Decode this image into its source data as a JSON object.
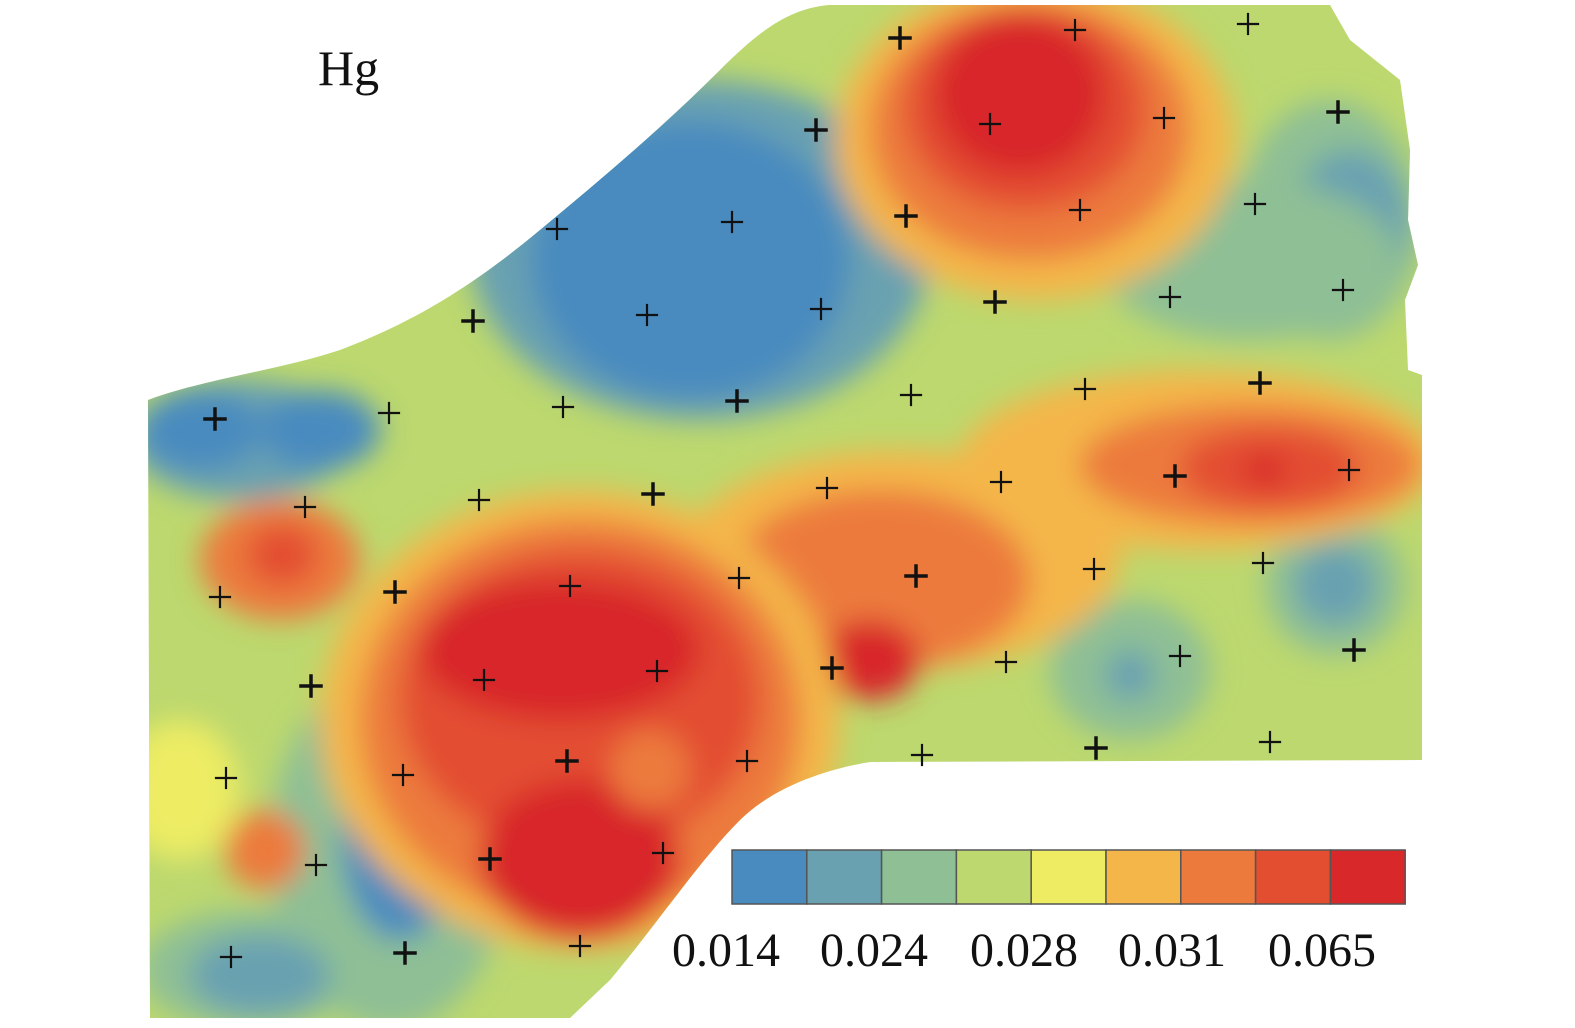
{
  "map": {
    "element_label": "Hg"
  },
  "legend": {
    "swatches": [
      {
        "color": "#4a8bbf"
      },
      {
        "color": "#69a1b1"
      },
      {
        "color": "#8ebf95"
      },
      {
        "color": "#bcd86e"
      },
      {
        "color": "#edec63"
      },
      {
        "color": "#f4b649"
      },
      {
        "color": "#ec7a3c"
      },
      {
        "color": "#e34e31"
      },
      {
        "color": "#d8282a"
      }
    ],
    "labels": [
      "0.014",
      "0.024",
      "0.028",
      "0.031",
      "0.065"
    ]
  }
}
